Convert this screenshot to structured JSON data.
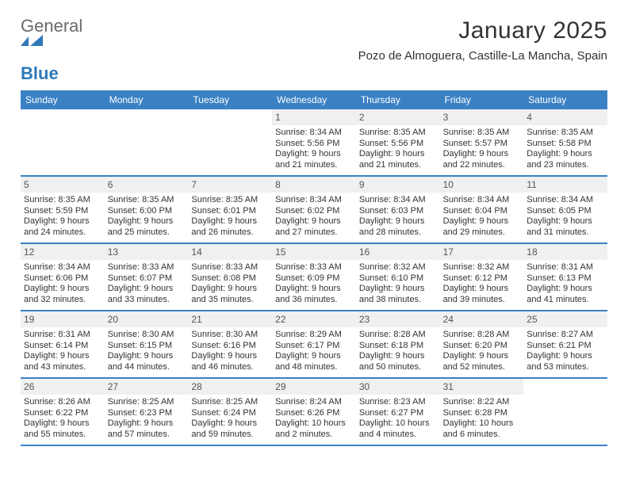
{
  "colors": {
    "brand_blue": "#3a81c4",
    "logo_blue": "#2f79b9",
    "logo_gray": "#6a6a6a",
    "daynum_bg": "#eef0f1",
    "text": "#333333",
    "bg": "#ffffff"
  },
  "logo": {
    "part1": "General",
    "part2": "Blue"
  },
  "title": "January 2025",
  "location": "Pozo de Almoguera, Castille-La Mancha, Spain",
  "weekdays": [
    "Sunday",
    "Monday",
    "Tuesday",
    "Wednesday",
    "Thursday",
    "Friday",
    "Saturday"
  ],
  "weeks": [
    [
      {
        "n": "",
        "lines": []
      },
      {
        "n": "",
        "lines": []
      },
      {
        "n": "",
        "lines": []
      },
      {
        "n": "1",
        "lines": [
          "Sunrise: 8:34 AM",
          "Sunset: 5:56 PM",
          "Daylight: 9 hours",
          "and 21 minutes."
        ]
      },
      {
        "n": "2",
        "lines": [
          "Sunrise: 8:35 AM",
          "Sunset: 5:56 PM",
          "Daylight: 9 hours",
          "and 21 minutes."
        ]
      },
      {
        "n": "3",
        "lines": [
          "Sunrise: 8:35 AM",
          "Sunset: 5:57 PM",
          "Daylight: 9 hours",
          "and 22 minutes."
        ]
      },
      {
        "n": "4",
        "lines": [
          "Sunrise: 8:35 AM",
          "Sunset: 5:58 PM",
          "Daylight: 9 hours",
          "and 23 minutes."
        ]
      }
    ],
    [
      {
        "n": "5",
        "lines": [
          "Sunrise: 8:35 AM",
          "Sunset: 5:59 PM",
          "Daylight: 9 hours",
          "and 24 minutes."
        ]
      },
      {
        "n": "6",
        "lines": [
          "Sunrise: 8:35 AM",
          "Sunset: 6:00 PM",
          "Daylight: 9 hours",
          "and 25 minutes."
        ]
      },
      {
        "n": "7",
        "lines": [
          "Sunrise: 8:35 AM",
          "Sunset: 6:01 PM",
          "Daylight: 9 hours",
          "and 26 minutes."
        ]
      },
      {
        "n": "8",
        "lines": [
          "Sunrise: 8:34 AM",
          "Sunset: 6:02 PM",
          "Daylight: 9 hours",
          "and 27 minutes."
        ]
      },
      {
        "n": "9",
        "lines": [
          "Sunrise: 8:34 AM",
          "Sunset: 6:03 PM",
          "Daylight: 9 hours",
          "and 28 minutes."
        ]
      },
      {
        "n": "10",
        "lines": [
          "Sunrise: 8:34 AM",
          "Sunset: 6:04 PM",
          "Daylight: 9 hours",
          "and 29 minutes."
        ]
      },
      {
        "n": "11",
        "lines": [
          "Sunrise: 8:34 AM",
          "Sunset: 6:05 PM",
          "Daylight: 9 hours",
          "and 31 minutes."
        ]
      }
    ],
    [
      {
        "n": "12",
        "lines": [
          "Sunrise: 8:34 AM",
          "Sunset: 6:06 PM",
          "Daylight: 9 hours",
          "and 32 minutes."
        ]
      },
      {
        "n": "13",
        "lines": [
          "Sunrise: 8:33 AM",
          "Sunset: 6:07 PM",
          "Daylight: 9 hours",
          "and 33 minutes."
        ]
      },
      {
        "n": "14",
        "lines": [
          "Sunrise: 8:33 AM",
          "Sunset: 6:08 PM",
          "Daylight: 9 hours",
          "and 35 minutes."
        ]
      },
      {
        "n": "15",
        "lines": [
          "Sunrise: 8:33 AM",
          "Sunset: 6:09 PM",
          "Daylight: 9 hours",
          "and 36 minutes."
        ]
      },
      {
        "n": "16",
        "lines": [
          "Sunrise: 8:32 AM",
          "Sunset: 6:10 PM",
          "Daylight: 9 hours",
          "and 38 minutes."
        ]
      },
      {
        "n": "17",
        "lines": [
          "Sunrise: 8:32 AM",
          "Sunset: 6:12 PM",
          "Daylight: 9 hours",
          "and 39 minutes."
        ]
      },
      {
        "n": "18",
        "lines": [
          "Sunrise: 8:31 AM",
          "Sunset: 6:13 PM",
          "Daylight: 9 hours",
          "and 41 minutes."
        ]
      }
    ],
    [
      {
        "n": "19",
        "lines": [
          "Sunrise: 8:31 AM",
          "Sunset: 6:14 PM",
          "Daylight: 9 hours",
          "and 43 minutes."
        ]
      },
      {
        "n": "20",
        "lines": [
          "Sunrise: 8:30 AM",
          "Sunset: 6:15 PM",
          "Daylight: 9 hours",
          "and 44 minutes."
        ]
      },
      {
        "n": "21",
        "lines": [
          "Sunrise: 8:30 AM",
          "Sunset: 6:16 PM",
          "Daylight: 9 hours",
          "and 46 minutes."
        ]
      },
      {
        "n": "22",
        "lines": [
          "Sunrise: 8:29 AM",
          "Sunset: 6:17 PM",
          "Daylight: 9 hours",
          "and 48 minutes."
        ]
      },
      {
        "n": "23",
        "lines": [
          "Sunrise: 8:28 AM",
          "Sunset: 6:18 PM",
          "Daylight: 9 hours",
          "and 50 minutes."
        ]
      },
      {
        "n": "24",
        "lines": [
          "Sunrise: 8:28 AM",
          "Sunset: 6:20 PM",
          "Daylight: 9 hours",
          "and 52 minutes."
        ]
      },
      {
        "n": "25",
        "lines": [
          "Sunrise: 8:27 AM",
          "Sunset: 6:21 PM",
          "Daylight: 9 hours",
          "and 53 minutes."
        ]
      }
    ],
    [
      {
        "n": "26",
        "lines": [
          "Sunrise: 8:26 AM",
          "Sunset: 6:22 PM",
          "Daylight: 9 hours",
          "and 55 minutes."
        ]
      },
      {
        "n": "27",
        "lines": [
          "Sunrise: 8:25 AM",
          "Sunset: 6:23 PM",
          "Daylight: 9 hours",
          "and 57 minutes."
        ]
      },
      {
        "n": "28",
        "lines": [
          "Sunrise: 8:25 AM",
          "Sunset: 6:24 PM",
          "Daylight: 9 hours",
          "and 59 minutes."
        ]
      },
      {
        "n": "29",
        "lines": [
          "Sunrise: 8:24 AM",
          "Sunset: 6:26 PM",
          "Daylight: 10 hours",
          "and 2 minutes."
        ]
      },
      {
        "n": "30",
        "lines": [
          "Sunrise: 8:23 AM",
          "Sunset: 6:27 PM",
          "Daylight: 10 hours",
          "and 4 minutes."
        ]
      },
      {
        "n": "31",
        "lines": [
          "Sunrise: 8:22 AM",
          "Sunset: 6:28 PM",
          "Daylight: 10 hours",
          "and 6 minutes."
        ]
      },
      {
        "n": "",
        "lines": []
      }
    ]
  ]
}
